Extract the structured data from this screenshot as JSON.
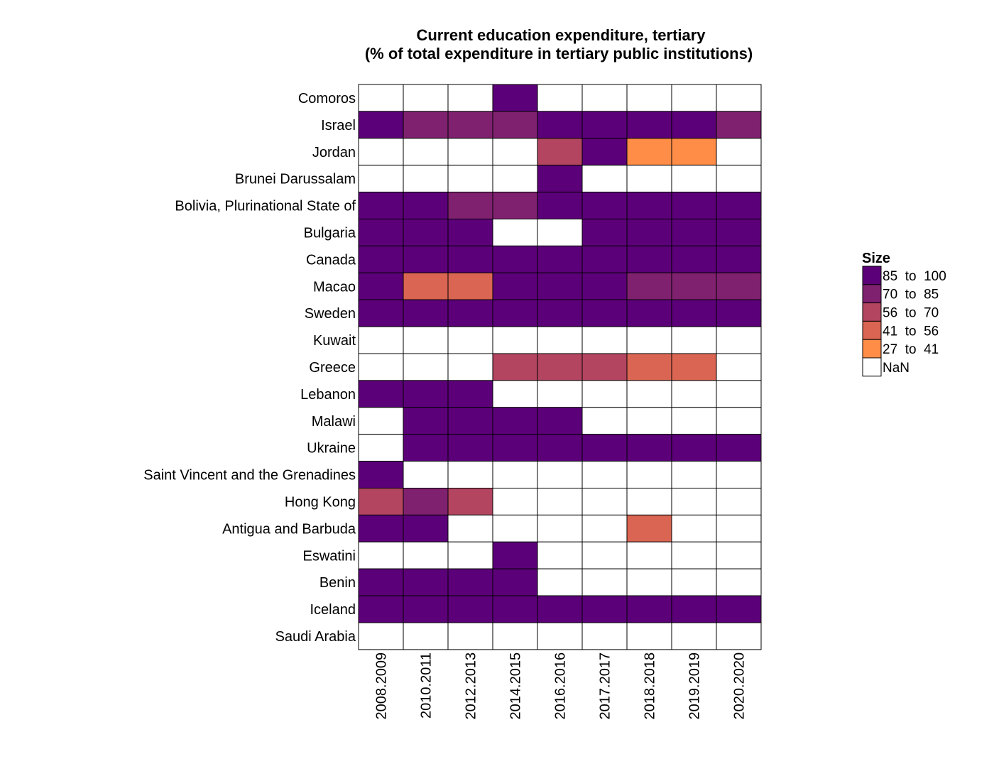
{
  "chart_data": {
    "type": "heatmap",
    "title_lines": [
      "Current education expenditure, tertiary",
      "(% of total expenditure in tertiary public institutions)"
    ],
    "xlabel": "",
    "ylabel": "",
    "columns": [
      "2008.2009",
      "2010.2011",
      "2012.2013",
      "2014.2015",
      "2016.2016",
      "2017.2017",
      "2018.2018",
      "2019.2019",
      "2020.2020"
    ],
    "rows": [
      "Comoros",
      "Israel",
      "Jordan",
      "Brunei Darussalam",
      "Bolivia, Plurinational State of",
      "Bulgaria",
      "Canada",
      "Macao",
      "Sweden",
      "Kuwait",
      "Greece",
      "Lebanon",
      "Malawi",
      "Ukraine",
      "Saint Vincent and the Grenadines",
      "Hong Kong",
      "Antigua and Barbuda",
      "Eswatini",
      "Benin",
      "Iceland",
      "Saudi Arabia"
    ],
    "legend": {
      "title": "Size",
      "placement": "right",
      "bins": [
        {
          "label": "85  to  100",
          "color": "#5c0079"
        },
        {
          "label": "70  to  85",
          "color": "#80216f"
        },
        {
          "label": "56  to  70",
          "color": "#b34560"
        },
        {
          "label": "41  to  56",
          "color": "#da6552"
        },
        {
          "label": "27  to  41",
          "color": "#ff8c47"
        },
        {
          "label": "NaN",
          "color": "#ffffff"
        }
      ]
    },
    "values": [
      [
        null,
        null,
        null,
        "85  to  100",
        null,
        null,
        null,
        null,
        null
      ],
      [
        "85  to  100",
        "70  to  85",
        "70  to  85",
        "70  to  85",
        "85  to  100",
        "85  to  100",
        "85  to  100",
        "85  to  100",
        "70  to  85"
      ],
      [
        null,
        null,
        null,
        null,
        "56  to  70",
        "85  to  100",
        "27  to  41",
        "27  to  41",
        null
      ],
      [
        null,
        null,
        null,
        null,
        "85  to  100",
        null,
        null,
        null,
        null
      ],
      [
        "85  to  100",
        "85  to  100",
        "70  to  85",
        "70  to  85",
        "85  to  100",
        "85  to  100",
        "85  to  100",
        "85  to  100",
        "85  to  100"
      ],
      [
        "85  to  100",
        "85  to  100",
        "85  to  100",
        null,
        null,
        "85  to  100",
        "85  to  100",
        "85  to  100",
        "85  to  100"
      ],
      [
        "85  to  100",
        "85  to  100",
        "85  to  100",
        "85  to  100",
        "85  to  100",
        "85  to  100",
        "85  to  100",
        "85  to  100",
        "85  to  100"
      ],
      [
        "85  to  100",
        "41  to  56",
        "41  to  56",
        "85  to  100",
        "85  to  100",
        "85  to  100",
        "70  to  85",
        "70  to  85",
        "70  to  85"
      ],
      [
        "85  to  100",
        "85  to  100",
        "85  to  100",
        "85  to  100",
        "85  to  100",
        "85  to  100",
        "85  to  100",
        "85  to  100",
        "85  to  100"
      ],
      [
        null,
        null,
        null,
        null,
        null,
        null,
        null,
        null,
        null
      ],
      [
        null,
        null,
        null,
        "56  to  70",
        "56  to  70",
        "56  to  70",
        "41  to  56",
        "41  to  56",
        null
      ],
      [
        "85  to  100",
        "85  to  100",
        "85  to  100",
        null,
        null,
        null,
        null,
        null,
        null
      ],
      [
        null,
        "85  to  100",
        "85  to  100",
        "85  to  100",
        "85  to  100",
        null,
        null,
        null,
        null
      ],
      [
        null,
        "85  to  100",
        "85  to  100",
        "85  to  100",
        "85  to  100",
        "85  to  100",
        "85  to  100",
        "85  to  100",
        "85  to  100"
      ],
      [
        "85  to  100",
        null,
        null,
        null,
        null,
        null,
        null,
        null,
        null
      ],
      [
        "56  to  70",
        "70  to  85",
        "56  to  70",
        null,
        null,
        null,
        null,
        null,
        null
      ],
      [
        "85  to  100",
        "85  to  100",
        null,
        null,
        null,
        null,
        "41  to  56",
        null,
        null
      ],
      [
        null,
        null,
        null,
        "85  to  100",
        null,
        null,
        null,
        null,
        null
      ],
      [
        "85  to  100",
        "85  to  100",
        "85  to  100",
        "85  to  100",
        null,
        null,
        null,
        null,
        null
      ],
      [
        "85  to  100",
        "85  to  100",
        "85  to  100",
        "85  to  100",
        "85  to  100",
        "85  to  100",
        "85  to  100",
        "85  to  100",
        "85  to  100"
      ],
      [
        null,
        null,
        null,
        null,
        null,
        null,
        null,
        null,
        null
      ]
    ],
    "grid": true
  }
}
